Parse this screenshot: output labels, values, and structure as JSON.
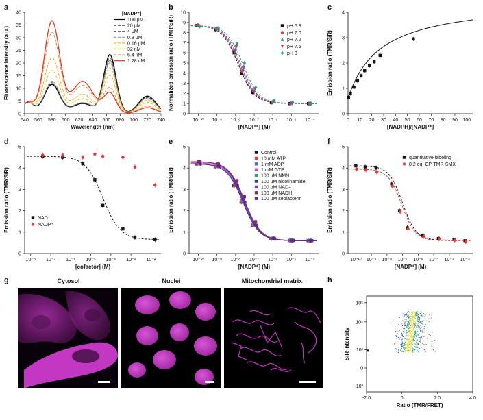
{
  "panels": {
    "a": {
      "label": "a"
    },
    "b": {
      "label": "b"
    },
    "c": {
      "label": "c"
    },
    "d": {
      "label": "d"
    },
    "e": {
      "label": "e"
    },
    "f": {
      "label": "f"
    },
    "g": {
      "label": "g"
    },
    "h": {
      "label": "h"
    }
  },
  "microscopy": {
    "titles": [
      "Cytosol",
      "Nuclei",
      "Mitochondrial matrix"
    ],
    "color": "#c235c4"
  },
  "chart_data": [
    {
      "id": "a",
      "type": "line",
      "title": "",
      "xlabel": "Wavelength (nm)",
      "ylabel": "Fluorescence intensity (a.u.)",
      "xlim": [
        540,
        740
      ],
      "ylim": [
        0,
        40
      ],
      "xticks": [
        540,
        560,
        580,
        600,
        620,
        640,
        660,
        680,
        700,
        720,
        740
      ],
      "yticks": [
        0,
        5,
        10,
        15,
        20,
        25,
        30,
        35,
        40
      ],
      "legend_title": "[NADP⁺]",
      "peak_wavelengths": [
        580,
        665
      ],
      "series": [
        {
          "name": "100 μM",
          "color": "#000000",
          "dash": "solid",
          "peak580": 11.5,
          "peak665": 23.2
        },
        {
          "name": "20 μM",
          "color": "#333333",
          "dash": "4,2",
          "peak580": 11.8,
          "peak665": 22.0
        },
        {
          "name": "4 μM",
          "color": "#555555",
          "dash": "4,2",
          "peak580": 12.2,
          "peak665": 21.0
        },
        {
          "name": "0.8 μM",
          "color": "#9a9a9a",
          "dash": "4,2",
          "peak580": 12.8,
          "peak665": 20.0
        },
        {
          "name": "0.16 μM",
          "color": "#f0c020",
          "dash": "4,2",
          "peak580": 17.0,
          "peak665": 18.0
        },
        {
          "name": "32 nM",
          "color": "#f5a623",
          "dash": "4,2",
          "peak580": 22.0,
          "peak665": 15.0
        },
        {
          "name": "6.4 nM",
          "color": "#e8882a",
          "dash": "4,2",
          "peak580": 32.0,
          "peak665": 10.0
        },
        {
          "name": "1.28 nM",
          "color": "#e0342a",
          "dash": "solid",
          "peak580": 36.5,
          "peak665": 8.0
        }
      ]
    },
    {
      "id": "b",
      "type": "scatter",
      "xlabel": "[NADP⁺] (M)",
      "ylabel": "Normalized emission ratio (TMR/SiR)",
      "xlog": true,
      "xlim": [
        -10.5,
        -3.5
      ],
      "ylim": [
        0,
        10
      ],
      "xtick_exponents": [
        -10,
        -9,
        -8,
        -7,
        -6,
        -5,
        -4
      ],
      "xtick_labels": [
        "10⁻¹⁰",
        "10⁻⁹",
        "10⁻⁸",
        "10⁻⁷",
        "10⁻⁶",
        "10⁻⁵",
        "10⁻⁴"
      ],
      "yticks": [
        0,
        1,
        2,
        3,
        4,
        5,
        6,
        7,
        8,
        9,
        10
      ],
      "x_exp": [
        -10,
        -9,
        -8,
        -7.6,
        -7,
        -6,
        -5,
        -4
      ],
      "series": [
        {
          "name": "pH 6.8",
          "color": "#111111",
          "marker": "square",
          "top": 8.7,
          "bottom": 1.0,
          "logec50": -7.85,
          "values": [
            8.7,
            8.3,
            6.0,
            4.0,
            2.1,
            1.1,
            1.0,
            1.0
          ]
        },
        {
          "name": "pH 7.0",
          "color": "#e03a3a",
          "marker": "circle",
          "top": 8.7,
          "bottom": 1.0,
          "logec50": -7.8,
          "values": [
            8.75,
            8.35,
            6.2,
            4.2,
            2.2,
            1.1,
            1.0,
            1.0
          ]
        },
        {
          "name": "pH 7.2",
          "color": "#3a6fd0",
          "marker": "triangle",
          "top": 8.7,
          "bottom": 1.0,
          "logec50": -7.75,
          "values": [
            8.7,
            8.4,
            6.4,
            4.4,
            2.3,
            1.2,
            1.05,
            1.0
          ]
        },
        {
          "name": "pH 7.5",
          "color": "#b03a8a",
          "marker": "triangle-down",
          "top": 8.7,
          "bottom": 1.0,
          "logec50": -7.7,
          "values": [
            8.65,
            8.4,
            6.6,
            4.6,
            2.4,
            1.2,
            1.05,
            1.0
          ]
        },
        {
          "name": "pH 8",
          "color": "#2aa36a",
          "marker": "diamond",
          "top": 8.7,
          "bottom": 1.0,
          "logec50": -7.6,
          "values": [
            8.6,
            8.45,
            6.9,
            5.0,
            2.6,
            1.3,
            1.1,
            1.0
          ]
        }
      ]
    },
    {
      "id": "c",
      "type": "scatter",
      "xlabel": "[NADPH]/[NADP⁺]",
      "ylabel": "Emission ratio (TMR/SiR)",
      "xlim": [
        0,
        105
      ],
      "ylim": [
        0,
        4
      ],
      "xticks": [
        0,
        10,
        20,
        30,
        40,
        50,
        60,
        70,
        80,
        90,
        100
      ],
      "yticks": [
        0,
        1,
        2,
        3,
        4
      ],
      "x": [
        0.5,
        2,
        5,
        8,
        11,
        14,
        18,
        22,
        27,
        55
      ],
      "y": [
        0.65,
        0.8,
        1.05,
        1.3,
        1.5,
        1.7,
        1.9,
        2.05,
        2.3,
        2.95
      ],
      "fit_max": 4.5,
      "fit_k": 27
    },
    {
      "id": "d",
      "type": "scatter",
      "xlabel": "[cofactor] (M)",
      "ylabel": "Emission ratio (TMR/SiR)",
      "xlog": true,
      "xlim": [
        -8.3,
        -1.5
      ],
      "ylim": [
        0,
        5
      ],
      "xtick_exponents": [
        -8,
        -7,
        -6,
        -5,
        -4,
        -3,
        -2
      ],
      "xtick_labels": [
        "10⁻⁸",
        "10⁻⁷",
        "10⁻⁶",
        "10⁻⁵",
        "10⁻⁴",
        "10⁻³",
        "10⁻²"
      ],
      "yticks": [
        0,
        1,
        2,
        3,
        4,
        5
      ],
      "series": [
        {
          "name": "NAD⁺",
          "color": "#111111",
          "marker": "square",
          "x_exp": [
            -7.4,
            -6.4,
            -5.4,
            -4.8,
            -4.4,
            -3.4,
            -2.8,
            -1.8
          ],
          "values": [
            4.55,
            4.5,
            4.2,
            3.45,
            2.25,
            1.15,
            0.75,
            0.65
          ],
          "top": 4.55,
          "bottom": 0.65,
          "logec50": -4.4
        },
        {
          "name": "NADP⁺",
          "color": "#e03a3a",
          "marker": "circle",
          "x_exp": [
            -7.4,
            -6.4,
            -5.4,
            -4.8,
            -4.4,
            -3.4,
            -2.8,
            -1.8
          ],
          "values": [
            4.6,
            4.6,
            4.5,
            4.65,
            4.55,
            4.5,
            4.05,
            3.2
          ]
        }
      ]
    },
    {
      "id": "e",
      "type": "scatter",
      "xlabel": "[NADP⁺] (M)",
      "ylabel": "Emission ratio (TMR/SiR)",
      "xlog": true,
      "xlim": [
        -10.5,
        -3.5
      ],
      "ylim": [
        0,
        5
      ],
      "xtick_exponents": [
        -10,
        -9,
        -8,
        -7,
        -6,
        -5,
        -4
      ],
      "xtick_labels": [
        "10⁻¹⁰",
        "10⁻⁹",
        "10⁻⁸",
        "10⁻⁷",
        "10⁻⁶",
        "10⁻⁵",
        "10⁻⁴"
      ],
      "yticks": [
        0,
        1,
        2,
        3,
        4,
        5
      ],
      "x_exp": [
        -10,
        -9,
        -8,
        -7.6,
        -7,
        -6,
        -5,
        -4
      ],
      "series": [
        {
          "name": "Control",
          "color": "#111111",
          "top": 4.2,
          "bottom": 0.6,
          "logec50": -7.6
        },
        {
          "name": "10 mM ATP",
          "color": "#e03a3a",
          "top": 4.2,
          "bottom": 0.6,
          "logec50": -7.6
        },
        {
          "name": "1 mM ADP",
          "color": "#3a6fd0",
          "top": 4.25,
          "bottom": 0.6,
          "logec50": -7.58
        },
        {
          "name": "1 mM GTP",
          "color": "#d04ad0",
          "top": 4.25,
          "bottom": 0.6,
          "logec50": -7.55
        },
        {
          "name": "100 uM NMN",
          "color": "#2aa36a",
          "top": 4.3,
          "bottom": 0.6,
          "logec50": -7.55
        },
        {
          "name": "100 uM nicotinamide",
          "color": "#2a3a8a",
          "top": 4.3,
          "bottom": 0.6,
          "logec50": -7.55
        },
        {
          "name": "100 uM NAD+",
          "color": "#7a3ab0",
          "top": 4.3,
          "bottom": 0.6,
          "logec50": -7.52
        },
        {
          "name": "100 uM NADH",
          "color": "#8a2a5a",
          "top": 4.3,
          "bottom": 0.6,
          "logec50": -7.5
        },
        {
          "name": "100 uM sepiapterin",
          "color": "#5a2a8a",
          "top": 4.2,
          "bottom": 0.6,
          "logec50": -7.6
        }
      ]
    },
    {
      "id": "f",
      "type": "scatter",
      "xlabel": "[NADP⁺] (M)",
      "ylabel": "Emission ratio (TMR/SiR)",
      "xlog": true,
      "xlim": [
        -10.5,
        -2.5
      ],
      "ylim": [
        0,
        5
      ],
      "xtick_exponents": [
        -10,
        -9,
        -8,
        -7,
        -6,
        -5,
        -4,
        -3
      ],
      "xtick_labels": [
        "10⁻¹⁰",
        "10⁻⁹",
        "10⁻⁸",
        "10⁻⁷",
        "10⁻⁶",
        "10⁻⁵",
        "10⁻⁴",
        "10⁻³"
      ],
      "yticks": [
        0,
        1,
        2,
        3,
        4,
        5
      ],
      "series": [
        {
          "name": "quantitative labeling",
          "color": "#111111",
          "marker": "square",
          "x_exp": [
            -10,
            -9.4,
            -8.7,
            -7.7,
            -7.2,
            -6.7,
            -5.7,
            -4.7,
            -3.7,
            -3.0
          ],
          "values": [
            4.1,
            4.05,
            4.0,
            3.25,
            2.0,
            1.2,
            0.85,
            0.7,
            0.65,
            0.6
          ],
          "top": 4.1,
          "bottom": 0.62,
          "logec50": -7.0
        },
        {
          "name": "0.2 eq. CP-TMR-SMX",
          "color": "#e03a3a",
          "marker": "circle",
          "x_exp": [
            -10,
            -9.4,
            -8.7,
            -7.7,
            -7.2,
            -6.7,
            -5.7,
            -4.7,
            -3.7,
            -3.0
          ],
          "values": [
            3.95,
            3.9,
            3.8,
            3.15,
            1.95,
            1.15,
            0.8,
            0.68,
            0.62,
            0.55
          ],
          "top": 3.95,
          "bottom": 0.6,
          "logec50": -7.05
        }
      ]
    },
    {
      "id": "h",
      "type": "scatter",
      "xlabel": "Ratio (TMR/FRET)",
      "ylabel": "SiR intensity",
      "xlim": [
        -2.0,
        4.0
      ],
      "xticks": [
        -2.0,
        0,
        2.0,
        4.0
      ],
      "xtick_labels": [
        "-2.0",
        "0",
        "2.0",
        "4.0"
      ],
      "ytick_labels": [
        "10⁵",
        "10⁴",
        "10³",
        "0",
        "-10³"
      ],
      "cloud_center_ratio": 0.8,
      "cloud_color_core": "#e8e040",
      "cloud_color_mid": "#3aa87a",
      "cloud_color_edge": "#3a5fb0"
    }
  ]
}
